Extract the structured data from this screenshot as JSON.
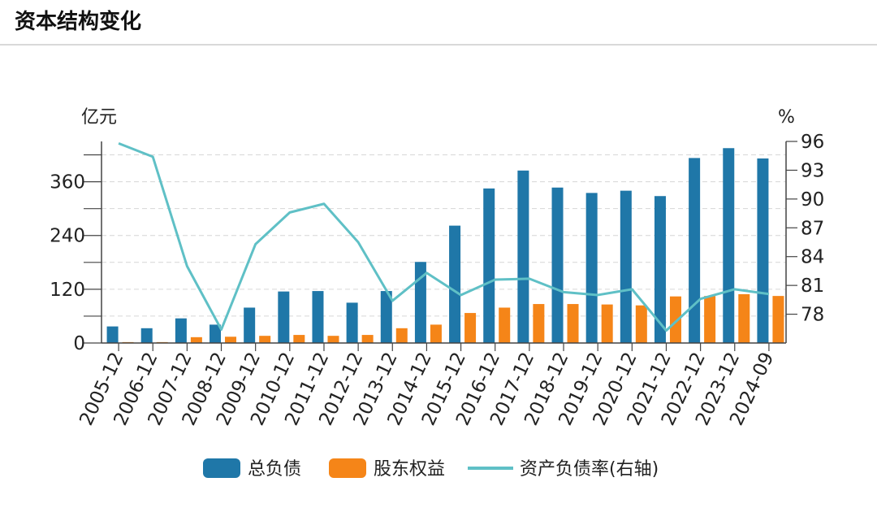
{
  "page": {
    "title": "资本结构变化"
  },
  "chart_data": {
    "type": "bar",
    "categories": [
      "2005-12",
      "2006-12",
      "2007-12",
      "2008-12",
      "2009-12",
      "2010-12",
      "2011-12",
      "2012-12",
      "2013-12",
      "2014-12",
      "2015-12",
      "2016-12",
      "2017-12",
      "2018-12",
      "2019-12",
      "2020-12",
      "2021-12",
      "2022-12",
      "2023-12",
      "2024-09"
    ],
    "left_axis": {
      "unit": "亿元",
      "ticks": [
        0,
        120,
        240,
        360
      ],
      "ylim": [
        0,
        450
      ]
    },
    "right_axis": {
      "unit": "%",
      "ticks": [
        78,
        81,
        84,
        87,
        90,
        93,
        96
      ],
      "ylim": [
        75,
        96
      ]
    },
    "series": [
      {
        "name": "总负债",
        "type": "bar",
        "axis": "left",
        "color": "#1f77a8",
        "values": [
          37,
          33,
          55,
          41,
          79,
          115,
          116,
          90,
          116,
          181,
          262,
          345,
          385,
          347,
          335,
          340,
          328,
          413,
          435,
          412
        ]
      },
      {
        "name": "股东权益",
        "type": "bar",
        "axis": "left",
        "color": "#f58518",
        "values": [
          2,
          2,
          13,
          14,
          16,
          18,
          16,
          18,
          33,
          41,
          67,
          79,
          87,
          87,
          86,
          84,
          104,
          105,
          109,
          105
        ]
      },
      {
        "name": "资产负债率(右轴)",
        "type": "line",
        "axis": "right",
        "color": "#5fc0c6",
        "values": [
          95.8,
          94.4,
          83.0,
          76.4,
          85.3,
          88.6,
          89.5,
          85.5,
          79.4,
          82.3,
          80.0,
          81.6,
          81.7,
          80.3,
          80.0,
          80.6,
          76.3,
          79.6,
          80.6,
          80.1
        ]
      }
    ],
    "grid": true,
    "legend": "bottom"
  }
}
